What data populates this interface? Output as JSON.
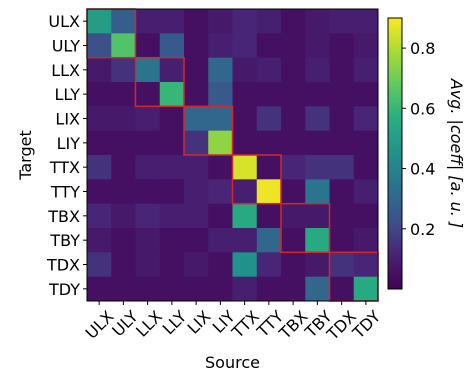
{
  "chart_data": {
    "type": "heatmap",
    "xlabel": "Source",
    "ylabel": "Target",
    "x_categories": [
      "ULX",
      "ULY",
      "LLX",
      "LLY",
      "LIX",
      "LIY",
      "TTX",
      "TTY",
      "TBX",
      "TBY",
      "TDX",
      "TDY"
    ],
    "y_categories": [
      "ULX",
      "ULY",
      "LLX",
      "LLY",
      "LIX",
      "LIY",
      "TTX",
      "TTY",
      "TBX",
      "TBY",
      "TDX",
      "TDY"
    ],
    "values": [
      [
        0.5,
        0.27,
        0.1,
        0.1,
        0.05,
        0.08,
        0.12,
        0.1,
        0.05,
        0.08,
        0.1,
        0.1
      ],
      [
        0.22,
        0.65,
        0.05,
        0.25,
        0.05,
        0.1,
        0.12,
        0.05,
        0.05,
        0.08,
        0.05,
        0.08
      ],
      [
        0.08,
        0.15,
        0.35,
        0.1,
        0.05,
        0.3,
        0.08,
        0.1,
        0.05,
        0.1,
        0.05,
        0.1
      ],
      [
        0.05,
        0.05,
        0.05,
        0.6,
        0.05,
        0.25,
        0.05,
        0.05,
        0.05,
        0.05,
        0.05,
        0.05
      ],
      [
        0.08,
        0.08,
        0.1,
        0.05,
        0.3,
        0.3,
        0.05,
        0.15,
        0.05,
        0.15,
        0.05,
        0.12
      ],
      [
        0.05,
        0.05,
        0.05,
        0.05,
        0.15,
        0.75,
        0.05,
        0.05,
        0.05,
        0.05,
        0.05,
        0.05
      ],
      [
        0.15,
        0.05,
        0.1,
        0.1,
        0.1,
        0.05,
        0.85,
        0.05,
        0.12,
        0.15,
        0.15,
        0.05
      ],
      [
        0.05,
        0.05,
        0.05,
        0.05,
        0.1,
        0.12,
        0.1,
        0.88,
        0.05,
        0.35,
        0.05,
        0.1
      ],
      [
        0.12,
        0.08,
        0.12,
        0.1,
        0.1,
        0.05,
        0.55,
        0.05,
        0.08,
        0.08,
        0.05,
        0.05
      ],
      [
        0.08,
        0.05,
        0.08,
        0.05,
        0.05,
        0.1,
        0.1,
        0.3,
        0.05,
        0.55,
        0.05,
        0.08
      ],
      [
        0.15,
        0.05,
        0.08,
        0.05,
        0.08,
        0.05,
        0.45,
        0.12,
        0.05,
        0.08,
        0.15,
        0.12
      ],
      [
        0.05,
        0.05,
        0.05,
        0.05,
        0.05,
        0.05,
        0.1,
        0.05,
        0.05,
        0.3,
        0.05,
        0.55
      ]
    ],
    "vmin": 0.0,
    "vmax": 0.9,
    "colormap": "viridis",
    "colorbar": {
      "label": "Avg. |coeff| [a. u. ]",
      "ticks": [
        0.2,
        0.4,
        0.6,
        0.8
      ],
      "tick_labels": [
        "0.2",
        "0.4",
        "0.6",
        "0.8"
      ]
    },
    "highlight_color": "#d62728",
    "highlight_blocks": [
      {
        "rows": [
          0,
          1
        ],
        "cols": [
          0,
          1
        ]
      },
      {
        "rows": [
          2,
          3
        ],
        "cols": [
          2,
          3
        ]
      },
      {
        "rows": [
          4,
          5
        ],
        "cols": [
          4,
          5
        ]
      },
      {
        "rows": [
          6,
          7
        ],
        "cols": [
          6,
          7
        ]
      },
      {
        "rows": [
          8,
          9
        ],
        "cols": [
          8,
          9
        ]
      },
      {
        "rows": [
          10,
          11
        ],
        "cols": [
          10,
          11
        ]
      }
    ]
  }
}
